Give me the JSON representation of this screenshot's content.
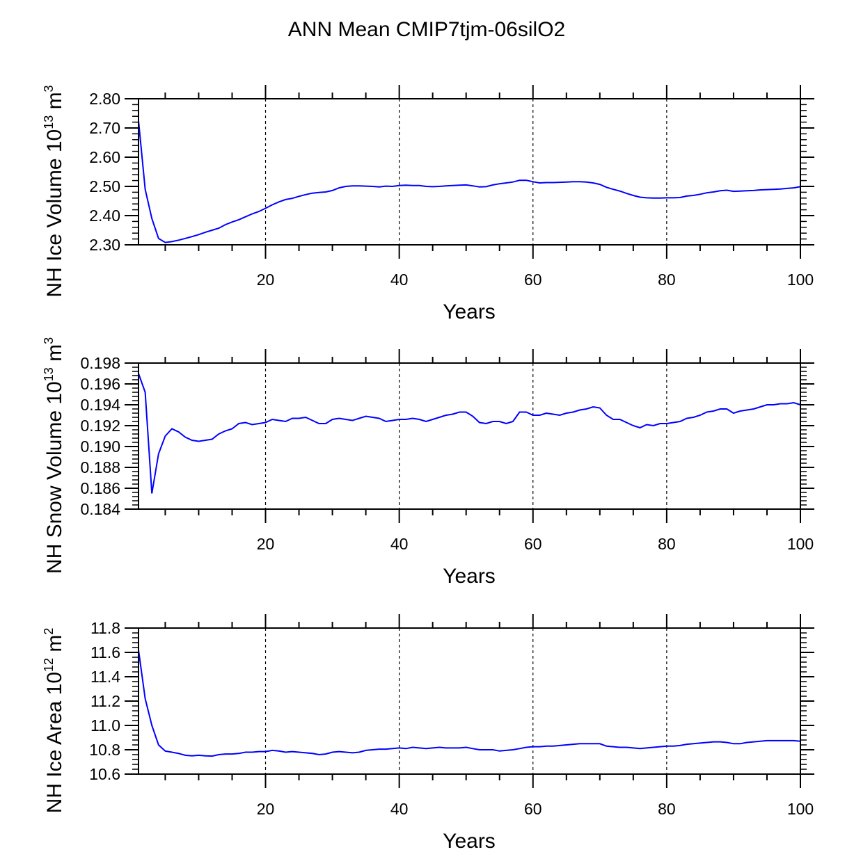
{
  "figure": {
    "title": "ANN Mean CMIP7tjm-06silO2"
  },
  "chart_data": [
    {
      "type": "line",
      "ylabel": {
        "main": "NH Ice Volume 10",
        "exp": "13",
        "unit": " m",
        "unit_exp": "3"
      },
      "xlabel": "Years",
      "xlim": [
        1,
        100
      ],
      "ylim": [
        2.3,
        2.8
      ],
      "xticks": [
        20,
        40,
        60,
        80,
        100
      ],
      "yticks": [
        "2.30",
        "2.40",
        "2.50",
        "2.60",
        "2.70",
        "2.80"
      ],
      "grid": "vertical dashed at major x ticks",
      "line_color": "#0000ff",
      "x": [
        1,
        2,
        3,
        4,
        5,
        6,
        7,
        8,
        9,
        10,
        11,
        12,
        13,
        14,
        15,
        16,
        17,
        18,
        19,
        20,
        21,
        22,
        23,
        24,
        25,
        26,
        27,
        28,
        29,
        30,
        31,
        32,
        33,
        34,
        35,
        36,
        37,
        38,
        39,
        40,
        41,
        42,
        43,
        44,
        45,
        46,
        47,
        48,
        49,
        50,
        51,
        52,
        53,
        54,
        55,
        56,
        57,
        58,
        59,
        60,
        61,
        62,
        63,
        64,
        65,
        66,
        67,
        68,
        69,
        70,
        71,
        72,
        73,
        74,
        75,
        76,
        77,
        78,
        79,
        80,
        81,
        82,
        83,
        84,
        85,
        86,
        87,
        88,
        89,
        90,
        91,
        92,
        93,
        94,
        95,
        96,
        97,
        98,
        99,
        100
      ],
      "values": [
        2.725,
        2.49,
        2.39,
        2.322,
        2.308,
        2.311,
        2.316,
        2.322,
        2.328,
        2.335,
        2.343,
        2.35,
        2.357,
        2.369,
        2.378,
        2.386,
        2.396,
        2.406,
        2.414,
        2.425,
        2.437,
        2.447,
        2.455,
        2.459,
        2.466,
        2.472,
        2.477,
        2.479,
        2.481,
        2.486,
        2.495,
        2.5,
        2.502,
        2.502,
        2.501,
        2.5,
        2.498,
        2.501,
        2.5,
        2.503,
        2.504,
        2.503,
        2.503,
        2.5,
        2.499,
        2.5,
        2.502,
        2.503,
        2.504,
        2.505,
        2.502,
        2.498,
        2.499,
        2.505,
        2.509,
        2.512,
        2.515,
        2.521,
        2.521,
        2.516,
        2.512,
        2.513,
        2.513,
        2.514,
        2.515,
        2.516,
        2.516,
        2.515,
        2.512,
        2.507,
        2.497,
        2.49,
        2.484,
        2.476,
        2.469,
        2.463,
        2.461,
        2.46,
        2.46,
        2.461,
        2.461,
        2.462,
        2.467,
        2.469,
        2.473,
        2.478,
        2.481,
        2.485,
        2.487,
        2.483,
        2.484,
        2.485,
        2.486,
        2.488,
        2.489,
        2.49,
        2.491,
        2.493,
        2.495,
        2.499
      ]
    },
    {
      "type": "line",
      "ylabel": {
        "main": "NH Snow Volume 10",
        "exp": "13",
        "unit": " m",
        "unit_exp": "3"
      },
      "xlabel": "Years",
      "xlim": [
        1,
        100
      ],
      "ylim": [
        0.184,
        0.198
      ],
      "xticks": [
        20,
        40,
        60,
        80,
        100
      ],
      "yticks": [
        "0.184",
        "0.186",
        "0.188",
        "0.190",
        "0.192",
        "0.194",
        "0.196",
        "0.198"
      ],
      "grid": "vertical dashed at major x ticks",
      "line_color": "#0000ff",
      "x": [
        1,
        2,
        3,
        4,
        5,
        6,
        7,
        8,
        9,
        10,
        11,
        12,
        13,
        14,
        15,
        16,
        17,
        18,
        19,
        20,
        21,
        22,
        23,
        24,
        25,
        26,
        27,
        28,
        29,
        30,
        31,
        32,
        33,
        34,
        35,
        36,
        37,
        38,
        39,
        40,
        41,
        42,
        43,
        44,
        45,
        46,
        47,
        48,
        49,
        50,
        51,
        52,
        53,
        54,
        55,
        56,
        57,
        58,
        59,
        60,
        61,
        62,
        63,
        64,
        65,
        66,
        67,
        68,
        69,
        70,
        71,
        72,
        73,
        74,
        75,
        76,
        77,
        78,
        79,
        80,
        81,
        82,
        83,
        84,
        85,
        86,
        87,
        88,
        89,
        90,
        91,
        92,
        93,
        94,
        95,
        96,
        97,
        98,
        99,
        100
      ],
      "values": [
        0.197,
        0.1952,
        0.1855,
        0.1893,
        0.191,
        0.1917,
        0.1914,
        0.1909,
        0.1906,
        0.1905,
        0.1906,
        0.1907,
        0.1912,
        0.1915,
        0.1917,
        0.1922,
        0.1923,
        0.1921,
        0.1922,
        0.1923,
        0.1926,
        0.1925,
        0.1924,
        0.1927,
        0.1927,
        0.1928,
        0.1925,
        0.1922,
        0.1922,
        0.1926,
        0.1927,
        0.1926,
        0.1925,
        0.1927,
        0.1929,
        0.1928,
        0.1927,
        0.1924,
        0.1925,
        0.1926,
        0.1926,
        0.1927,
        0.1926,
        0.1924,
        0.1926,
        0.1928,
        0.193,
        0.1931,
        0.1933,
        0.1933,
        0.1929,
        0.1923,
        0.1922,
        0.1924,
        0.1924,
        0.1922,
        0.1924,
        0.1933,
        0.1933,
        0.193,
        0.193,
        0.1932,
        0.1931,
        0.193,
        0.1932,
        0.1933,
        0.1935,
        0.1936,
        0.1938,
        0.1937,
        0.193,
        0.1926,
        0.1926,
        0.1923,
        0.192,
        0.1918,
        0.1921,
        0.192,
        0.1922,
        0.1922,
        0.1923,
        0.1924,
        0.1927,
        0.1928,
        0.193,
        0.1933,
        0.1934,
        0.1936,
        0.1936,
        0.1932,
        0.1934,
        0.1935,
        0.1936,
        0.1938,
        0.194,
        0.194,
        0.1941,
        0.1941,
        0.1942,
        0.194
      ]
    },
    {
      "type": "line",
      "ylabel": {
        "main": "NH Ice Area 10",
        "exp": "12",
        "unit": " m",
        "unit_exp": "2"
      },
      "xlabel": "Years",
      "xlim": [
        1,
        100
      ],
      "ylim": [
        10.6,
        11.8
      ],
      "xticks": [
        20,
        40,
        60,
        80,
        100
      ],
      "yticks": [
        "10.6",
        "10.8",
        "11.0",
        "11.2",
        "11.4",
        "11.6",
        "11.8"
      ],
      "grid": "vertical dashed at major x ticks",
      "line_color": "#0000ff",
      "x": [
        1,
        2,
        3,
        4,
        5,
        6,
        7,
        8,
        9,
        10,
        11,
        12,
        13,
        14,
        15,
        16,
        17,
        18,
        19,
        20,
        21,
        22,
        23,
        24,
        25,
        26,
        27,
        28,
        29,
        30,
        31,
        32,
        33,
        34,
        35,
        36,
        37,
        38,
        39,
        40,
        41,
        42,
        43,
        44,
        45,
        46,
        47,
        48,
        49,
        50,
        51,
        52,
        53,
        54,
        55,
        56,
        57,
        58,
        59,
        60,
        61,
        62,
        63,
        64,
        65,
        66,
        67,
        68,
        69,
        70,
        71,
        72,
        73,
        74,
        75,
        76,
        77,
        78,
        79,
        80,
        81,
        82,
        83,
        84,
        85,
        86,
        87,
        88,
        89,
        90,
        91,
        92,
        93,
        94,
        95,
        96,
        97,
        98,
        99,
        100
      ],
      "values": [
        11.62,
        11.22,
        11.0,
        10.84,
        10.79,
        10.78,
        10.77,
        10.755,
        10.75,
        10.755,
        10.75,
        10.748,
        10.76,
        10.765,
        10.765,
        10.77,
        10.78,
        10.78,
        10.785,
        10.785,
        10.795,
        10.79,
        10.78,
        10.785,
        10.78,
        10.775,
        10.77,
        10.76,
        10.765,
        10.78,
        10.785,
        10.78,
        10.775,
        10.78,
        10.795,
        10.8,
        10.805,
        10.805,
        10.81,
        10.815,
        10.81,
        10.82,
        10.815,
        10.81,
        10.815,
        10.82,
        10.815,
        10.815,
        10.815,
        10.82,
        10.81,
        10.8,
        10.8,
        10.8,
        10.79,
        10.795,
        10.8,
        10.81,
        10.82,
        10.825,
        10.825,
        10.83,
        10.83,
        10.835,
        10.84,
        10.845,
        10.85,
        10.85,
        10.85,
        10.85,
        10.83,
        10.825,
        10.82,
        10.82,
        10.815,
        10.81,
        10.815,
        10.82,
        10.825,
        10.83,
        10.83,
        10.835,
        10.845,
        10.85,
        10.855,
        10.86,
        10.865,
        10.865,
        10.86,
        10.85,
        10.85,
        10.86,
        10.865,
        10.87,
        10.875,
        10.875,
        10.875,
        10.875,
        10.875,
        10.87
      ]
    }
  ]
}
